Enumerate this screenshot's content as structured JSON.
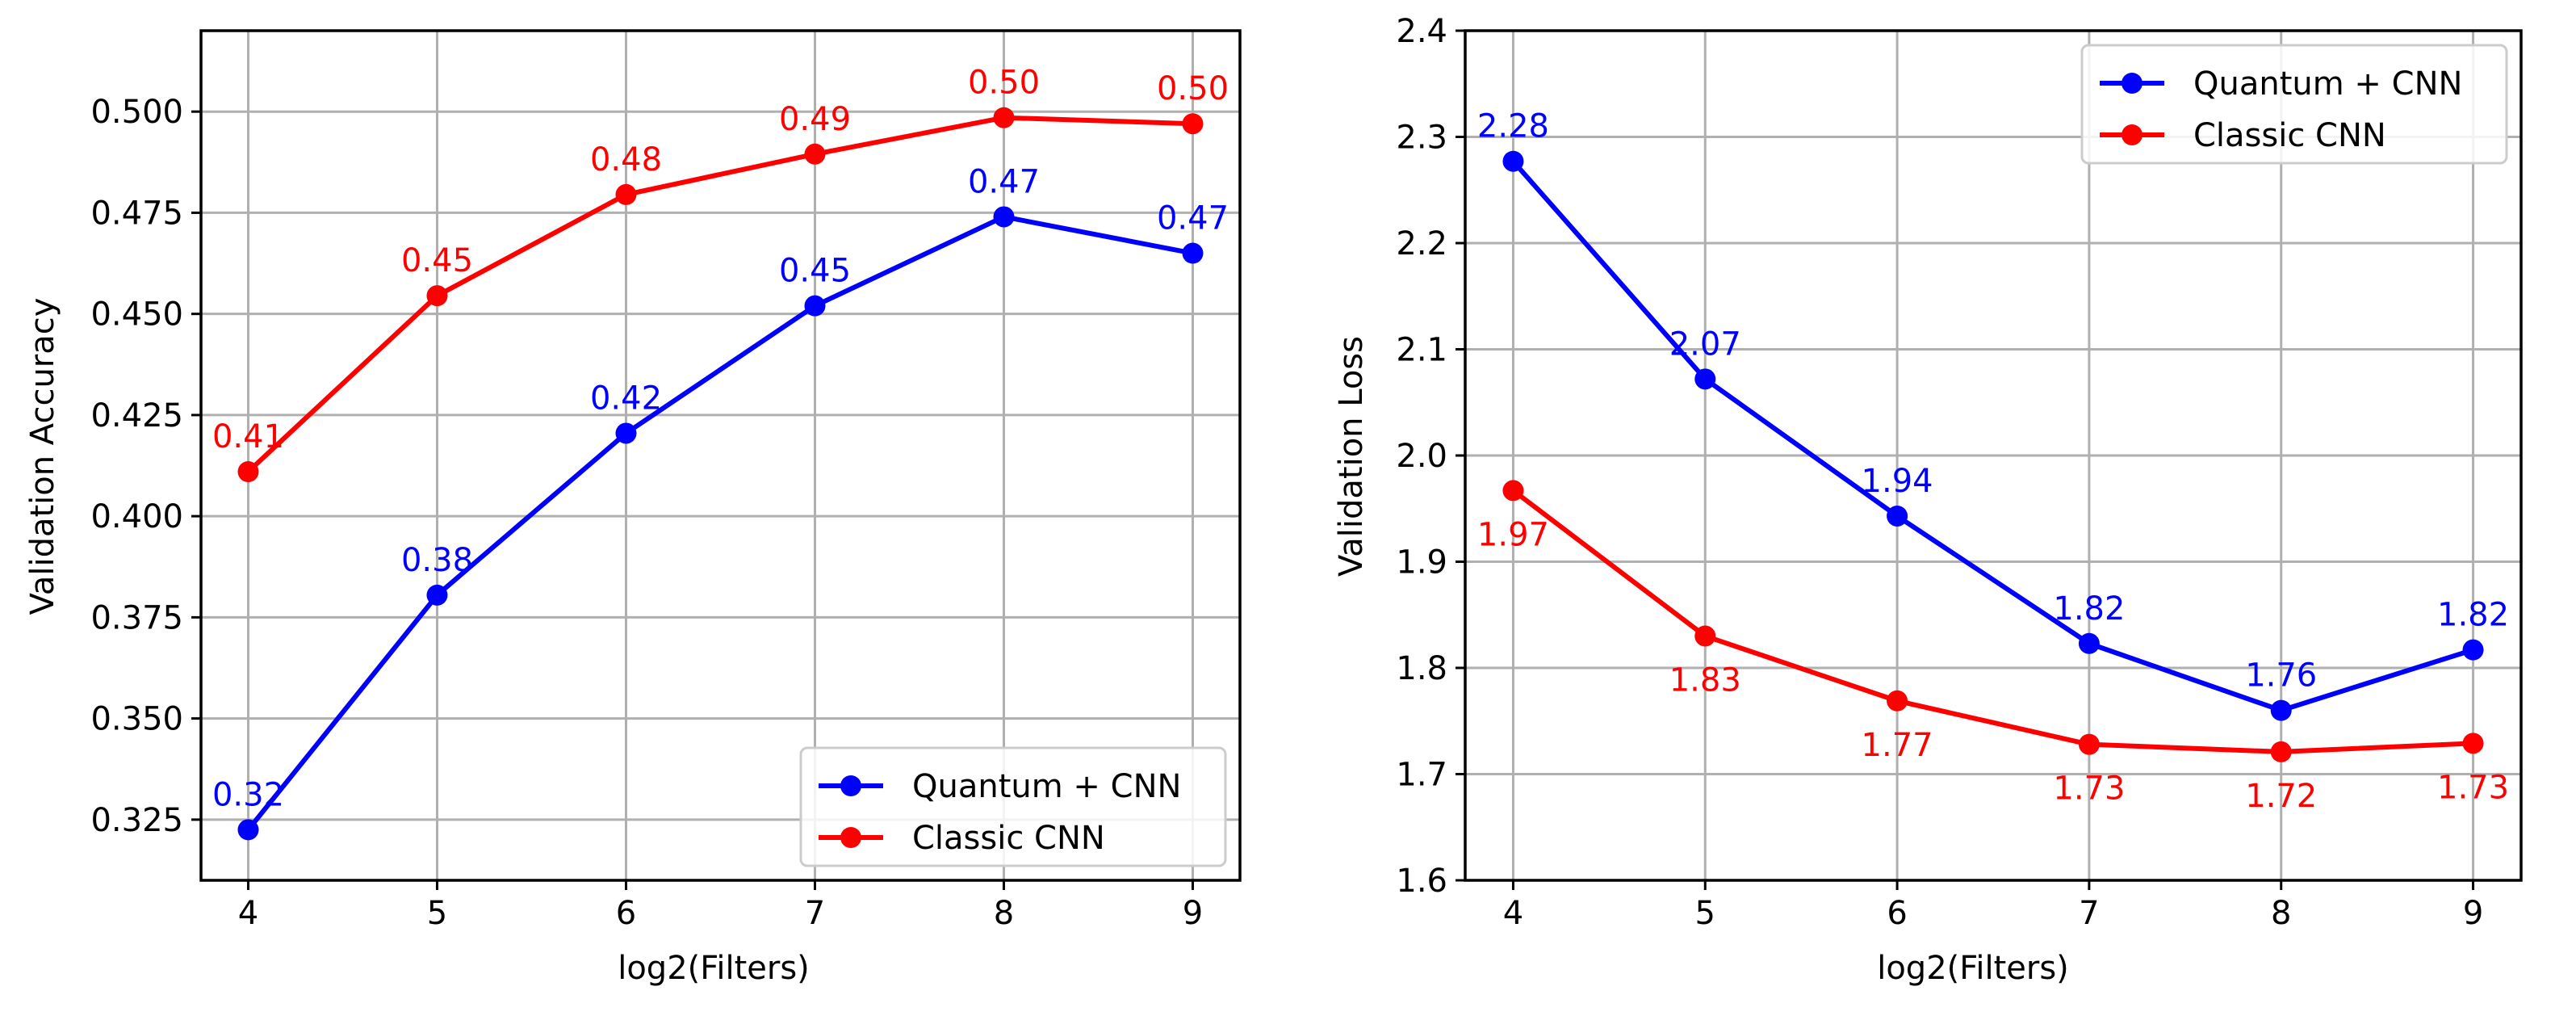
{
  "chart_data": [
    {
      "type": "line",
      "title": "",
      "xlabel": "log2(Filters)",
      "ylabel": "Validation Accuracy",
      "x": [
        4,
        5,
        6,
        7,
        8,
        9
      ],
      "xlim": [
        3.75,
        9.25
      ],
      "ylim": [
        0.31,
        0.52
      ],
      "xticks": [
        4,
        5,
        6,
        7,
        8,
        9
      ],
      "yticks": [
        0.325,
        0.35,
        0.375,
        0.4,
        0.425,
        0.45,
        0.475,
        0.5
      ],
      "ytick_labels": [
        "0.325",
        "0.350",
        "0.375",
        "0.400",
        "0.425",
        "0.450",
        "0.475",
        "0.500"
      ],
      "grid": true,
      "legend_position": "bottom-right",
      "series": [
        {
          "name": "Quantum + CNN",
          "color": "#0000ff",
          "values": [
            0.3225,
            0.3805,
            0.4205,
            0.452,
            0.474,
            0.465
          ],
          "labels": [
            "0.32",
            "0.38",
            "0.42",
            "0.45",
            "0.47",
            "0.47"
          ],
          "label_side": "above"
        },
        {
          "name": "Classic CNN",
          "color": "#ff0000",
          "values": [
            0.411,
            0.4545,
            0.4795,
            0.4895,
            0.4985,
            0.497
          ],
          "labels": [
            "0.41",
            "0.45",
            "0.48",
            "0.49",
            "0.50",
            "0.50"
          ],
          "label_side": "above"
        }
      ]
    },
    {
      "type": "line",
      "title": "",
      "xlabel": "log2(Filters)",
      "ylabel": "Validation Loss",
      "x": [
        4,
        5,
        6,
        7,
        8,
        9
      ],
      "xlim": [
        3.75,
        9.25
      ],
      "ylim": [
        1.6,
        2.4
      ],
      "xticks": [
        4,
        5,
        6,
        7,
        8,
        9
      ],
      "yticks": [
        1.6,
        1.7,
        1.8,
        1.9,
        2.0,
        2.1,
        2.2,
        2.3,
        2.4
      ],
      "ytick_labels": [
        "1.6",
        "1.7",
        "1.8",
        "1.9",
        "2.0",
        "2.1",
        "2.2",
        "2.3",
        "2.4"
      ],
      "grid": true,
      "legend_position": "top-right",
      "series": [
        {
          "name": "Quantum + CNN",
          "color": "#0000ff",
          "values": [
            2.277,
            2.072,
            1.943,
            1.823,
            1.76,
            1.817
          ],
          "labels": [
            "2.28",
            "2.07",
            "1.94",
            "1.82",
            "1.76",
            "1.82"
          ],
          "label_side": "above"
        },
        {
          "name": "Classic CNN",
          "color": "#ff0000",
          "values": [
            1.967,
            1.83,
            1.769,
            1.728,
            1.721,
            1.729
          ],
          "labels": [
            "1.97",
            "1.83",
            "1.77",
            "1.73",
            "1.72",
            "1.73"
          ],
          "label_side": "below"
        }
      ]
    }
  ]
}
